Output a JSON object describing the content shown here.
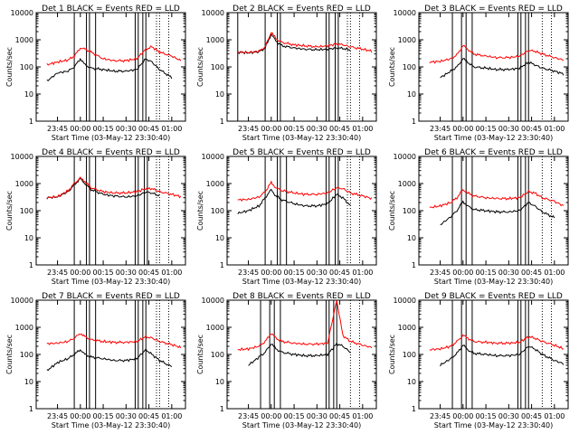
{
  "figure": {
    "start_time_label": "Start Time (03-May-12 23:30:40)",
    "ylabel": "Counts/sec",
    "x_tick_labels": [
      "23:45",
      "00:00",
      "00:15",
      "00:30",
      "00:45",
      "01:00"
    ],
    "y_tick_labels": [
      "1",
      "10",
      "100",
      "1000",
      "10000"
    ]
  },
  "chart_data": [
    {
      "type": "line",
      "title": "Det 1 BLACK = Events RED = LLD",
      "xlabel": "Start Time (03-May-12 23:30:40)",
      "ylabel": "Counts/sec",
      "y_scale": "log",
      "ylim": [
        1,
        10000
      ],
      "x": [
        "23:38",
        "23:45",
        "23:52",
        "23:56",
        "00:00",
        "00:03",
        "00:07",
        "00:15",
        "00:22",
        "00:30",
        "00:37",
        "00:43",
        "00:47",
        "00:52",
        "01:00",
        "01:06"
      ],
      "series": [
        {
          "name": "BLACK = Events",
          "color": "#000000",
          "start": "23:38",
          "values": [
            30,
            60,
            70,
            100,
            200,
            120,
            90,
            80,
            70,
            70,
            80,
            200,
            150,
            80,
            40,
            null
          ]
        },
        {
          "name": "RED = LLD",
          "color": "#ff0000",
          "values": [
            120,
            150,
            180,
            250,
            500,
            450,
            350,
            200,
            170,
            170,
            200,
            450,
            550,
            350,
            250,
            170
          ]
        }
      ],
      "markers": {
        "solid": [
          "23:56",
          "00:04",
          "00:06",
          "00:10",
          "00:36",
          "00:38",
          "00:41",
          "00:43"
        ],
        "dotted": [
          "00:50",
          "00:52",
          "00:58"
        ]
      }
    },
    {
      "type": "line",
      "title": "Det 2 BLACK = Events RED = LLD",
      "xlabel": "Start Time (03-May-12 23:30:40)",
      "ylabel": "Counts/sec",
      "y_scale": "log",
      "ylim": [
        1,
        10000
      ],
      "x": [
        "23:38",
        "23:45",
        "23:52",
        "23:56",
        "00:00",
        "00:03",
        "00:07",
        "00:15",
        "00:22",
        "00:30",
        "00:37",
        "00:43",
        "00:47",
        "00:52",
        "01:00",
        "01:06"
      ],
      "series": [
        {
          "name": "BLACK = Events",
          "color": "#000000",
          "values": [
            350,
            330,
            360,
            500,
            1600,
            900,
            600,
            500,
            450,
            430,
            450,
            500,
            480,
            420,
            null,
            null
          ]
        },
        {
          "name": "RED = LLD",
          "color": "#ff0000",
          "values": [
            350,
            340,
            380,
            550,
            1900,
            1100,
            800,
            650,
            600,
            550,
            600,
            700,
            650,
            550,
            450,
            380
          ]
        }
      ],
      "markers": {
        "solid": [
          "23:38",
          "23:56",
          "00:04",
          "00:06",
          "00:36",
          "00:38",
          "00:42",
          "00:44"
        ],
        "dotted": [
          "00:50",
          "00:52",
          "00:58"
        ]
      }
    },
    {
      "type": "line",
      "title": "Det 3 BLACK = Events RED = LLD",
      "xlabel": "Start Time (03-May-12 23:30:40)",
      "ylabel": "Counts/sec",
      "y_scale": "log",
      "ylim": [
        1,
        10000
      ],
      "x": [
        "23:38",
        "23:45",
        "23:52",
        "23:56",
        "00:00",
        "00:03",
        "00:07",
        "00:15",
        "00:22",
        "00:30",
        "00:37",
        "00:43",
        "00:47",
        "00:52",
        "01:00",
        "01:06"
      ],
      "series": [
        {
          "name": "BLACK = Events",
          "color": "#000000",
          "start": "23:45",
          "values": [
            null,
            40,
            70,
            100,
            200,
            150,
            100,
            90,
            80,
            80,
            90,
            150,
            120,
            90,
            70,
            55
          ]
        },
        {
          "name": "RED = LLD",
          "color": "#ff0000",
          "values": [
            150,
            160,
            200,
            280,
            600,
            450,
            300,
            250,
            220,
            220,
            250,
            400,
            380,
            300,
            220,
            180
          ]
        }
      ],
      "markers": {
        "solid": [
          "23:53",
          "23:59",
          "00:02",
          "00:06",
          "00:36",
          "00:38",
          "00:41",
          "00:43"
        ],
        "dotted": [
          "00:52",
          "00:58"
        ]
      }
    },
    {
      "type": "line",
      "title": "Det 4 BLACK = Events RED = LLD",
      "xlabel": "Start Time (03-May-12 23:30:40)",
      "ylabel": "Counts/sec",
      "y_scale": "log",
      "ylim": [
        1,
        10000
      ],
      "x": [
        "23:38",
        "23:45",
        "23:52",
        "23:56",
        "00:00",
        "00:03",
        "00:07",
        "00:15",
        "00:22",
        "00:30",
        "00:37",
        "00:43",
        "00:47",
        "00:52",
        "01:00",
        "01:06"
      ],
      "series": [
        {
          "name": "BLACK = Events",
          "color": "#000000",
          "values": [
            300,
            320,
            500,
            900,
            1500,
            1000,
            600,
            400,
            350,
            320,
            350,
            480,
            450,
            350,
            null,
            null
          ]
        },
        {
          "name": "RED = LLD",
          "color": "#ff0000",
          "values": [
            300,
            330,
            550,
            1000,
            1600,
            1200,
            700,
            500,
            450,
            450,
            500,
            650,
            650,
            500,
            400,
            330
          ]
        }
      ],
      "markers": {
        "solid": [
          "23:56",
          "00:04",
          "00:06",
          "00:10",
          "00:36",
          "00:38",
          "00:42",
          "00:44"
        ],
        "dotted": [
          "00:50",
          "00:52",
          "00:58"
        ]
      }
    },
    {
      "type": "line",
      "title": "Det 5 BLACK = Events RED = LLD",
      "xlabel": "Start Time (03-May-12 23:30:40)",
      "ylabel": "Counts/sec",
      "y_scale": "log",
      "ylim": [
        1,
        10000
      ],
      "x": [
        "23:38",
        "23:45",
        "23:52",
        "23:56",
        "00:00",
        "00:03",
        "00:07",
        "00:15",
        "00:22",
        "00:30",
        "00:37",
        "00:43",
        "00:47",
        "00:52",
        "01:00",
        "01:06"
      ],
      "series": [
        {
          "name": "BLACK = Events",
          "color": "#000000",
          "start": "23:38",
          "values": [
            80,
            100,
            150,
            300,
            600,
            350,
            250,
            180,
            150,
            150,
            180,
            400,
            300,
            150,
            null,
            null
          ]
        },
        {
          "name": "RED = LLD",
          "color": "#ff0000",
          "values": [
            250,
            260,
            320,
            500,
            1100,
            700,
            550,
            450,
            400,
            400,
            450,
            700,
            650,
            450,
            350,
            280
          ]
        }
      ],
      "markers": {
        "solid": [
          "23:56",
          "00:04",
          "00:06",
          "00:10",
          "00:36",
          "00:38",
          "00:42",
          "00:44"
        ],
        "dotted": [
          "00:50",
          "00:52",
          "00:58"
        ]
      }
    },
    {
      "type": "line",
      "title": "Det 6 BLACK = Events RED = LLD",
      "xlabel": "Start Time (03-May-12 23:30:40)",
      "ylabel": "Counts/sec",
      "y_scale": "log",
      "ylim": [
        1,
        10000
      ],
      "x": [
        "23:38",
        "23:45",
        "23:52",
        "23:56",
        "00:00",
        "00:03",
        "00:07",
        "00:15",
        "00:22",
        "00:30",
        "00:37",
        "00:43",
        "00:47",
        "00:52",
        "01:00",
        "01:06"
      ],
      "series": [
        {
          "name": "BLACK = Events",
          "color": "#000000",
          "start": "23:45",
          "values": [
            null,
            30,
            60,
            100,
            220,
            150,
            110,
            100,
            90,
            90,
            100,
            200,
            150,
            90,
            55,
            null
          ]
        },
        {
          "name": "RED = LLD",
          "color": "#ff0000",
          "values": [
            130,
            150,
            200,
            300,
            600,
            450,
            350,
            300,
            280,
            280,
            300,
            500,
            450,
            300,
            220,
            150
          ]
        }
      ],
      "markers": {
        "solid": [
          "23:53",
          "23:59",
          "00:02",
          "00:06",
          "00:36",
          "00:38",
          "00:41",
          "00:43"
        ],
        "dotted": [
          "00:52",
          "00:58"
        ]
      }
    },
    {
      "type": "line",
      "title": "Det 7 BLACK = Events RED = LLD",
      "xlabel": "Start Time (03-May-12 23:30:40)",
      "ylabel": "Counts/sec",
      "y_scale": "log",
      "ylim": [
        1,
        10000
      ],
      "x": [
        "23:38",
        "23:45",
        "23:52",
        "23:56",
        "00:00",
        "00:03",
        "00:07",
        "00:15",
        "00:22",
        "00:30",
        "00:37",
        "00:43",
        "00:47",
        "00:52",
        "01:00",
        "01:06"
      ],
      "series": [
        {
          "name": "BLACK = Events",
          "color": "#000000",
          "start": "23:38",
          "values": [
            25,
            50,
            70,
            100,
            150,
            100,
            80,
            70,
            60,
            60,
            70,
            150,
            100,
            60,
            35,
            null
          ]
        },
        {
          "name": "RED = LLD",
          "color": "#ff0000",
          "values": [
            250,
            260,
            300,
            400,
            600,
            450,
            350,
            300,
            280,
            280,
            300,
            450,
            400,
            300,
            230,
            180
          ]
        }
      ],
      "markers": {
        "solid": [
          "23:56",
          "00:04",
          "00:06",
          "00:10",
          "00:36",
          "00:38",
          "00:41",
          "00:43"
        ],
        "dotted": [
          "00:50",
          "00:52",
          "00:58"
        ]
      }
    },
    {
      "type": "line",
      "title": "Det 8 BLACK = Events RED = LLD",
      "xlabel": "Start Time (03-May-12 23:30:40)",
      "ylabel": "Counts/sec",
      "y_scale": "log",
      "ylim": [
        1,
        10000
      ],
      "x": [
        "23:38",
        "23:45",
        "23:52",
        "23:56",
        "00:00",
        "00:03",
        "00:07",
        "00:15",
        "00:22",
        "00:30",
        "00:37",
        "00:43",
        "00:47",
        "00:52",
        "01:00",
        "01:06"
      ],
      "series": [
        {
          "name": "BLACK = Events",
          "color": "#000000",
          "start": "23:45",
          "values": [
            null,
            40,
            80,
            120,
            250,
            160,
            120,
            100,
            90,
            90,
            100,
            250,
            200,
            120,
            null,
            null
          ]
        },
        {
          "name": "RED = LLD",
          "color": "#ff0000",
          "values": [
            150,
            160,
            200,
            300,
            600,
            400,
            300,
            260,
            240,
            240,
            260,
            10000,
            500,
            300,
            220,
            180
          ]
        }
      ],
      "markers": {
        "solid": [
          "23:53",
          "23:59",
          "00:02",
          "00:06",
          "00:36",
          "00:38",
          "00:41",
          "00:43"
        ],
        "dotted": [
          "00:52",
          "00:58"
        ]
      }
    },
    {
      "type": "line",
      "title": "Det 9 BLACK = Events RED = LLD",
      "xlabel": "Start Time (03-May-12 23:30:40)",
      "ylabel": "Counts/sec",
      "y_scale": "log",
      "ylim": [
        1,
        10000
      ],
      "x": [
        "23:38",
        "23:45",
        "23:52",
        "23:56",
        "00:00",
        "00:03",
        "00:07",
        "00:15",
        "00:22",
        "00:30",
        "00:37",
        "00:43",
        "00:47",
        "00:52",
        "01:00",
        "01:06"
      ],
      "series": [
        {
          "name": "BLACK = Events",
          "color": "#000000",
          "start": "23:45",
          "values": [
            null,
            40,
            70,
            110,
            220,
            150,
            110,
            100,
            90,
            90,
            100,
            200,
            160,
            100,
            60,
            45
          ]
        },
        {
          "name": "RED = LLD",
          "color": "#ff0000",
          "values": [
            150,
            160,
            200,
            300,
            500,
            400,
            300,
            280,
            260,
            260,
            280,
            450,
            400,
            300,
            220,
            160
          ]
        }
      ],
      "markers": {
        "solid": [
          "23:53",
          "23:59",
          "00:02",
          "00:06",
          "00:36",
          "00:38",
          "00:41",
          "00:43"
        ],
        "dotted": [
          "00:52",
          "00:58"
        ]
      }
    }
  ]
}
